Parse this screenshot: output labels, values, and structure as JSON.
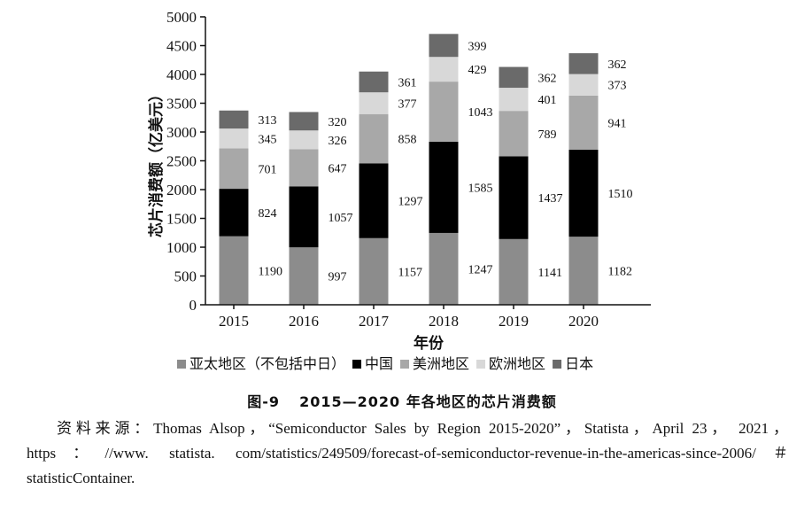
{
  "chart_data": {
    "type": "bar",
    "stacked": true,
    "categories": [
      "2015",
      "2016",
      "2017",
      "2018",
      "2019",
      "2020"
    ],
    "series": [
      {
        "name": "亚太地区（不包括中日）",
        "color": "#8c8c8c",
        "values": [
          1190,
          997,
          1157,
          1247,
          1141,
          1182
        ]
      },
      {
        "name": "中国",
        "color": "#000000",
        "values": [
          824,
          1057,
          1297,
          1585,
          1437,
          1510
        ]
      },
      {
        "name": "美洲地区",
        "color": "#a8a8a8",
        "values": [
          701,
          647,
          858,
          1043,
          789,
          941
        ]
      },
      {
        "name": "欧洲地区",
        "color": "#d8d8d8",
        "values": [
          345,
          326,
          377,
          429,
          401,
          373
        ]
      },
      {
        "name": "日本",
        "color": "#6a6a6a",
        "values": [
          313,
          320,
          361,
          399,
          362,
          362
        ]
      }
    ],
    "yticks": [
      "0",
      "500",
      "1000",
      "1500",
      "2000",
      "2500",
      "3000",
      "3500",
      "4000",
      "4500",
      "5000"
    ],
    "ylim": [
      0,
      5000
    ],
    "xlabel": "年份",
    "ylabel": "芯片消费额（亿美元）",
    "legend_position": "bottom"
  },
  "caption": {
    "figure_number": "图-9",
    "title": "2015—2020 年各地区的芯片消费额"
  },
  "source_note": "资料来源：Thomas Alsop，“Semiconductor Sales by Region 2015-2020”，Statista，April 23， 2021， https：//www. statista. com/statistics/249509/forecast-of-semiconductor-revenue-in-the-americas-since-2006/＃statisticContainer."
}
